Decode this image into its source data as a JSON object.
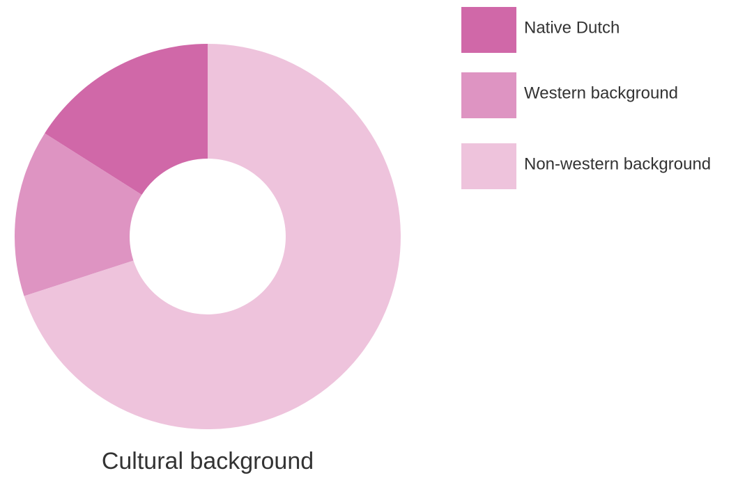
{
  "chart_data": {
    "type": "pie",
    "title": "Cultural background",
    "categories": [
      "Native Dutch",
      "Western background",
      "Non-western background"
    ],
    "values": [
      16,
      14,
      70
    ],
    "colors": [
      "#d068a8",
      "#de94c2",
      "#eec3dc"
    ]
  }
}
